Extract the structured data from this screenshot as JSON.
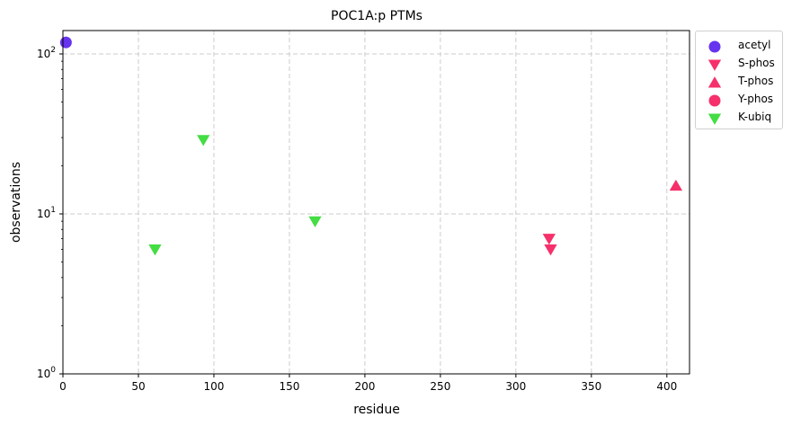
{
  "chart_data": {
    "type": "scatter",
    "title": "POC1A:p PTMs",
    "xlabel": "residue",
    "ylabel": "observations",
    "xlim": [
      0,
      415
    ],
    "ylim": [
      1,
      140
    ],
    "yscale": "log",
    "x_ticks": [
      0,
      50,
      100,
      150,
      200,
      250,
      300,
      350,
      400
    ],
    "y_ticks": [
      1,
      10,
      100
    ],
    "y_tick_labels": [
      "10^0",
      "10^1",
      "10^2"
    ],
    "grid": true,
    "legend_position": "outside-top-right",
    "series": [
      {
        "name": "acetyl",
        "marker": "circle",
        "color": "#6633ee",
        "points": [
          {
            "x": 2,
            "y": 118
          }
        ]
      },
      {
        "name": "S-phos",
        "marker": "triangle-down",
        "color": "#f5306a",
        "points": [
          {
            "x": 322,
            "y": 7
          },
          {
            "x": 323,
            "y": 6
          }
        ]
      },
      {
        "name": "T-phos",
        "marker": "triangle-up",
        "color": "#f5306a",
        "points": [
          {
            "x": 406,
            "y": 15
          }
        ]
      },
      {
        "name": "Y-phos",
        "marker": "circle",
        "color": "#f5306a",
        "points": []
      },
      {
        "name": "K-ubiq",
        "marker": "triangle-down",
        "color": "#44dd44",
        "points": [
          {
            "x": 61,
            "y": 6
          },
          {
            "x": 93,
            "y": 29
          },
          {
            "x": 167,
            "y": 9
          }
        ]
      }
    ]
  }
}
